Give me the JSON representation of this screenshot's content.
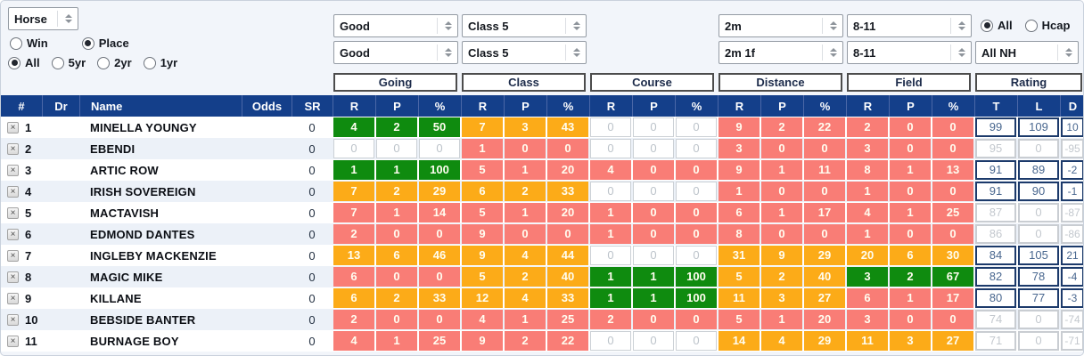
{
  "colors": {
    "green": "#0f8b0f",
    "amber": "#fcab18",
    "red": "#f97d76",
    "header_navy": "#143f8a"
  },
  "filters": {
    "subject": "Horse",
    "bet_type": {
      "options": [
        "Win",
        "Place"
      ],
      "selected": "Place"
    },
    "age": {
      "options": [
        "All",
        "5yr",
        "2yr",
        "1yr"
      ],
      "selected": "All"
    },
    "going_row1": "Good",
    "going_row2": "Good",
    "class_row1": "Class 5",
    "class_row2": "Class 5",
    "distance_row1": "2m",
    "distance_row2": "2m 1f",
    "field_row1": "8-11",
    "field_row2": "8-11",
    "hcap": {
      "options": [
        "All",
        "Hcap"
      ],
      "selected": "All"
    },
    "race_type": "All NH"
  },
  "table": {
    "groups": [
      "Going",
      "Class",
      "Course",
      "Distance",
      "Field",
      "Rating"
    ],
    "fixed_cols": [
      "#",
      "Dr",
      "Name",
      "Odds",
      "SR"
    ],
    "stat_cols": [
      "R",
      "P",
      "%"
    ],
    "rating_cols": [
      "T",
      "L",
      "D"
    ],
    "rows": [
      {
        "num": 1,
        "dr": "",
        "name": "MINELLA YOUNGY",
        "odds": "",
        "sr": "0",
        "going": [
          4,
          2,
          50,
          "green"
        ],
        "class": [
          7,
          3,
          43,
          "amber"
        ],
        "course": [
          0,
          0,
          0,
          "empty"
        ],
        "distance": [
          9,
          2,
          22,
          "red"
        ],
        "field": [
          2,
          0,
          0,
          "red"
        ],
        "rating": [
          99,
          109,
          10,
          "active"
        ]
      },
      {
        "num": 2,
        "dr": "",
        "name": "EBENDI",
        "odds": "",
        "sr": "0",
        "going": [
          0,
          0,
          0,
          "empty"
        ],
        "class": [
          1,
          0,
          0,
          "red"
        ],
        "course": [
          0,
          0,
          0,
          "empty"
        ],
        "distance": [
          3,
          0,
          0,
          "red"
        ],
        "field": [
          3,
          0,
          0,
          "red"
        ],
        "rating": [
          95,
          0,
          -95,
          "inactive"
        ]
      },
      {
        "num": 3,
        "dr": "",
        "name": "ARTIC ROW",
        "odds": "",
        "sr": "0",
        "going": [
          1,
          1,
          100,
          "green"
        ],
        "class": [
          5,
          1,
          20,
          "red"
        ],
        "course": [
          4,
          0,
          0,
          "red"
        ],
        "distance": [
          9,
          1,
          11,
          "red"
        ],
        "field": [
          8,
          1,
          13,
          "red"
        ],
        "rating": [
          91,
          89,
          -2,
          "active"
        ]
      },
      {
        "num": 4,
        "dr": "",
        "name": "IRISH SOVEREIGN",
        "odds": "",
        "sr": "0",
        "going": [
          7,
          2,
          29,
          "amber"
        ],
        "class": [
          6,
          2,
          33,
          "amber"
        ],
        "course": [
          0,
          0,
          0,
          "empty"
        ],
        "distance": [
          1,
          0,
          0,
          "red"
        ],
        "field": [
          1,
          0,
          0,
          "red"
        ],
        "rating": [
          91,
          90,
          -1,
          "active"
        ]
      },
      {
        "num": 5,
        "dr": "",
        "name": "MACTAVISH",
        "odds": "",
        "sr": "0",
        "going": [
          7,
          1,
          14,
          "red"
        ],
        "class": [
          5,
          1,
          20,
          "red"
        ],
        "course": [
          1,
          0,
          0,
          "red"
        ],
        "distance": [
          6,
          1,
          17,
          "red"
        ],
        "field": [
          4,
          1,
          25,
          "red"
        ],
        "rating": [
          87,
          0,
          -87,
          "inactive"
        ]
      },
      {
        "num": 6,
        "dr": "",
        "name": "EDMOND DANTES",
        "odds": "",
        "sr": "0",
        "going": [
          2,
          0,
          0,
          "red"
        ],
        "class": [
          9,
          0,
          0,
          "red"
        ],
        "course": [
          1,
          0,
          0,
          "red"
        ],
        "distance": [
          8,
          0,
          0,
          "red"
        ],
        "field": [
          1,
          0,
          0,
          "red"
        ],
        "rating": [
          86,
          0,
          -86,
          "inactive"
        ]
      },
      {
        "num": 7,
        "dr": "",
        "name": "INGLEBY MACKENZIE",
        "odds": "",
        "sr": "0",
        "going": [
          13,
          6,
          46,
          "amber"
        ],
        "class": [
          9,
          4,
          44,
          "amber"
        ],
        "course": [
          0,
          0,
          0,
          "empty"
        ],
        "distance": [
          31,
          9,
          29,
          "amber"
        ],
        "field": [
          20,
          6,
          30,
          "amber"
        ],
        "rating": [
          84,
          105,
          21,
          "active"
        ]
      },
      {
        "num": 8,
        "dr": "",
        "name": "MAGIC MIKE",
        "odds": "",
        "sr": "0",
        "going": [
          6,
          0,
          0,
          "red"
        ],
        "class": [
          5,
          2,
          40,
          "amber"
        ],
        "course": [
          1,
          1,
          100,
          "green"
        ],
        "distance": [
          5,
          2,
          40,
          "amber"
        ],
        "field": [
          3,
          2,
          67,
          "green"
        ],
        "rating": [
          82,
          78,
          -4,
          "active"
        ]
      },
      {
        "num": 9,
        "dr": "",
        "name": "KILLANE",
        "odds": "",
        "sr": "0",
        "going": [
          6,
          2,
          33,
          "amber"
        ],
        "class": [
          12,
          4,
          33,
          "amber"
        ],
        "course": [
          1,
          1,
          100,
          "green"
        ],
        "distance": [
          11,
          3,
          27,
          "amber"
        ],
        "field": [
          6,
          1,
          17,
          "red"
        ],
        "rating": [
          80,
          77,
          -3,
          "active"
        ]
      },
      {
        "num": 10,
        "dr": "",
        "name": "BEBSIDE BANTER",
        "odds": "",
        "sr": "0",
        "going": [
          2,
          0,
          0,
          "red"
        ],
        "class": [
          4,
          1,
          25,
          "red"
        ],
        "course": [
          2,
          0,
          0,
          "red"
        ],
        "distance": [
          5,
          1,
          20,
          "red"
        ],
        "field": [
          3,
          0,
          0,
          "red"
        ],
        "rating": [
          74,
          0,
          -74,
          "inactive"
        ]
      },
      {
        "num": 11,
        "dr": "",
        "name": "BURNAGE BOY",
        "odds": "",
        "sr": "0",
        "going": [
          4,
          1,
          25,
          "red"
        ],
        "class": [
          9,
          2,
          22,
          "red"
        ],
        "course": [
          0,
          0,
          0,
          "empty"
        ],
        "distance": [
          14,
          4,
          29,
          "amber"
        ],
        "field": [
          11,
          3,
          27,
          "amber"
        ],
        "rating": [
          71,
          0,
          -71,
          "inactive"
        ]
      }
    ]
  }
}
